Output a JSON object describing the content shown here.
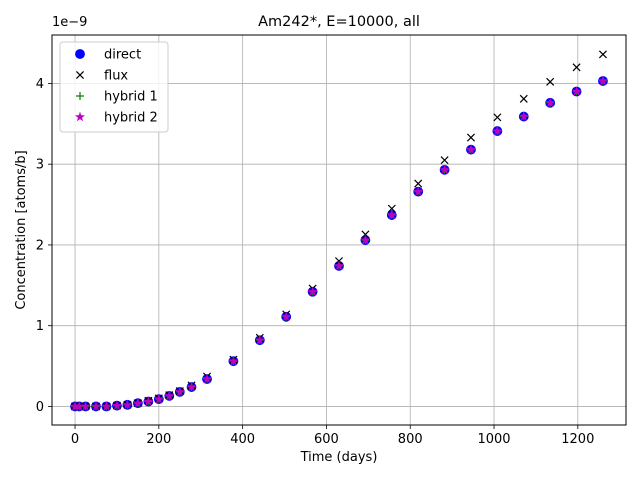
{
  "chart_data": {
    "type": "scatter",
    "title": "Am242*, E=10000, all",
    "xlabel": "Time (days)",
    "ylabel": "Concentration [atoms/b]",
    "y_offset_label": "1e−9",
    "xlim": [
      -55,
      1315
    ],
    "ylim": [
      -0.23,
      4.6
    ],
    "xticks": [
      0,
      200,
      400,
      600,
      800,
      1000,
      1200
    ],
    "yticks": [
      0,
      1,
      2,
      3,
      4
    ],
    "grid": true,
    "legend_position": "upper-left",
    "x": [
      0,
      10,
      25,
      50,
      75,
      100,
      125,
      150,
      175,
      200,
      225,
      250,
      278,
      315,
      378,
      441,
      504,
      567,
      630,
      693,
      756,
      819,
      882,
      945,
      1008,
      1071,
      1134,
      1197,
      1260
    ],
    "series": [
      {
        "name": "direct",
        "marker": "circle",
        "color": "#0000ff",
        "values": [
          0,
          0,
          0,
          0,
          0,
          0.01,
          0.02,
          0.04,
          0.06,
          0.09,
          0.13,
          0.18,
          0.24,
          0.34,
          0.56,
          0.82,
          1.11,
          1.42,
          1.74,
          2.06,
          2.37,
          2.66,
          2.93,
          3.18,
          3.41,
          3.59,
          3.76,
          3.9,
          4.03
        ]
      },
      {
        "name": "flux",
        "marker": "x",
        "color": "#000000",
        "values": [
          0,
          0,
          0,
          0,
          0,
          0.01,
          0.02,
          0.04,
          0.07,
          0.1,
          0.14,
          0.19,
          0.26,
          0.37,
          0.58,
          0.85,
          1.14,
          1.46,
          1.8,
          2.13,
          2.45,
          2.76,
          3.05,
          3.33,
          3.58,
          3.81,
          4.02,
          4.2,
          4.36
        ]
      },
      {
        "name": "hybrid 1",
        "marker": "plus",
        "color": "#008000",
        "values": [
          0,
          0,
          0,
          0,
          0,
          0.01,
          0.02,
          0.04,
          0.06,
          0.09,
          0.13,
          0.18,
          0.24,
          0.34,
          0.56,
          0.82,
          1.11,
          1.42,
          1.74,
          2.06,
          2.37,
          2.66,
          2.93,
          3.18,
          3.41,
          3.59,
          3.76,
          3.9,
          4.03
        ]
      },
      {
        "name": "hybrid 2",
        "marker": "star",
        "color": "#bf00bf",
        "values": [
          0,
          0,
          0,
          0,
          0,
          0.01,
          0.02,
          0.04,
          0.06,
          0.09,
          0.13,
          0.18,
          0.24,
          0.34,
          0.56,
          0.82,
          1.11,
          1.42,
          1.74,
          2.06,
          2.37,
          2.66,
          2.93,
          3.18,
          3.41,
          3.59,
          3.76,
          3.9,
          4.03
        ]
      }
    ]
  }
}
